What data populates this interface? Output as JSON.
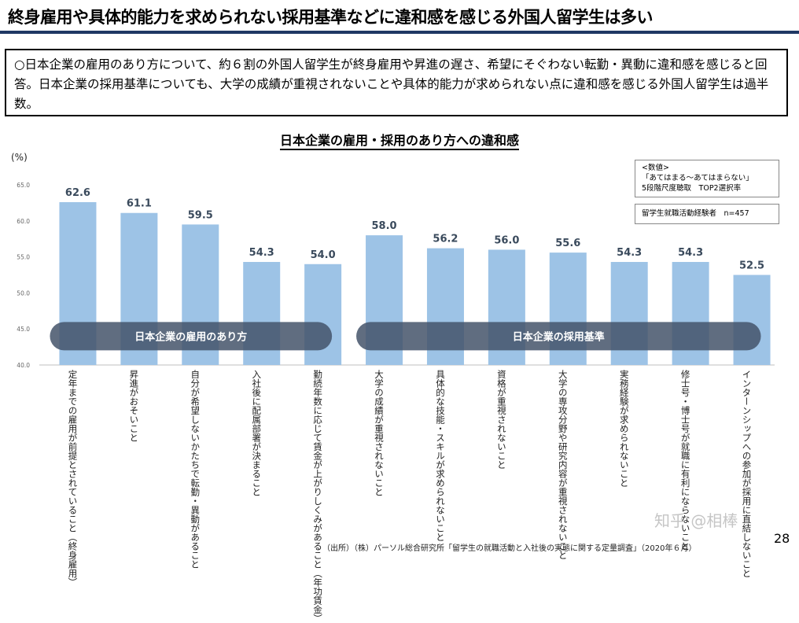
{
  "title": "終身雇用や具体的能力を求められない採用基準などに違和感を感じる外国人留学生は多い",
  "summary": "○日本企業の雇用のあり方について、約６割の外国人留学生が終身雇用や昇進の遅さ、希望にそぐわない転勤・異動に違和感を感じると回答。日本企業の採用基準についても、大学の成績が重視されないことや具体的能力が求められない点に違和感を感じる外国人留学生は過半数。",
  "chart_data": {
    "type": "bar",
    "title": "日本企業の雇用・採用のあり方への違和感",
    "ylabel": "(%)",
    "ylim": [
      40,
      65
    ],
    "yticks": [
      "40.0",
      "45.0",
      "50.0",
      "55.0",
      "60.0",
      "65.0"
    ],
    "categories": [
      "定年までの雇用が前提とされていること（終身雇用）",
      "昇進がおそいこと",
      "自分が希望しないかたちで転勤・異動があること",
      "入社後に配属部署が決まること",
      "勤続年数に応じて賃金が上がりしくみがあること（年功賃金）",
      "大学の成績が重視されないこと",
      "具体的な技能・スキルが求められないこと",
      "資格が重視されないこと",
      "大学の専攻分野や研究内容が重視されないこと",
      "実務経験が求められないこと",
      "修士号・博士号が就職に有利にならないこと",
      "インターンシップへの参加が採用に直結しないこと"
    ],
    "values": [
      62.6,
      61.1,
      59.5,
      54.3,
      54.0,
      58.0,
      56.2,
      56.0,
      55.6,
      54.3,
      54.3,
      52.5
    ],
    "value_labels": [
      "62.6",
      "61.1",
      "59.5",
      "54.3",
      "54.0",
      "58.0",
      "56.2",
      "56.0",
      "55.6",
      "54.3",
      "54.3",
      "52.5"
    ],
    "groups": [
      {
        "label": "日本企業の雇用のあり方",
        "from": 0,
        "to": 4
      },
      {
        "label": "日本企業の採用基準",
        "from": 5,
        "to": 11
      }
    ],
    "bar_color": "#9dc3e6",
    "group_color": "#44546a"
  },
  "note": {
    "line1": "<数値>",
    "line2": "「あてはまる～あてはまらない」",
    "line3": "5段階尺度聴取　TOP2選択率"
  },
  "sample": "留学生就職活動経験者　n=457",
  "source": "（出所）（株）パーソル総合研究所「留学生の就職活動と入社後の実態に関する定量調査」（2020年６月）",
  "page_number": "28",
  "watermark": "知乎 @相棒"
}
